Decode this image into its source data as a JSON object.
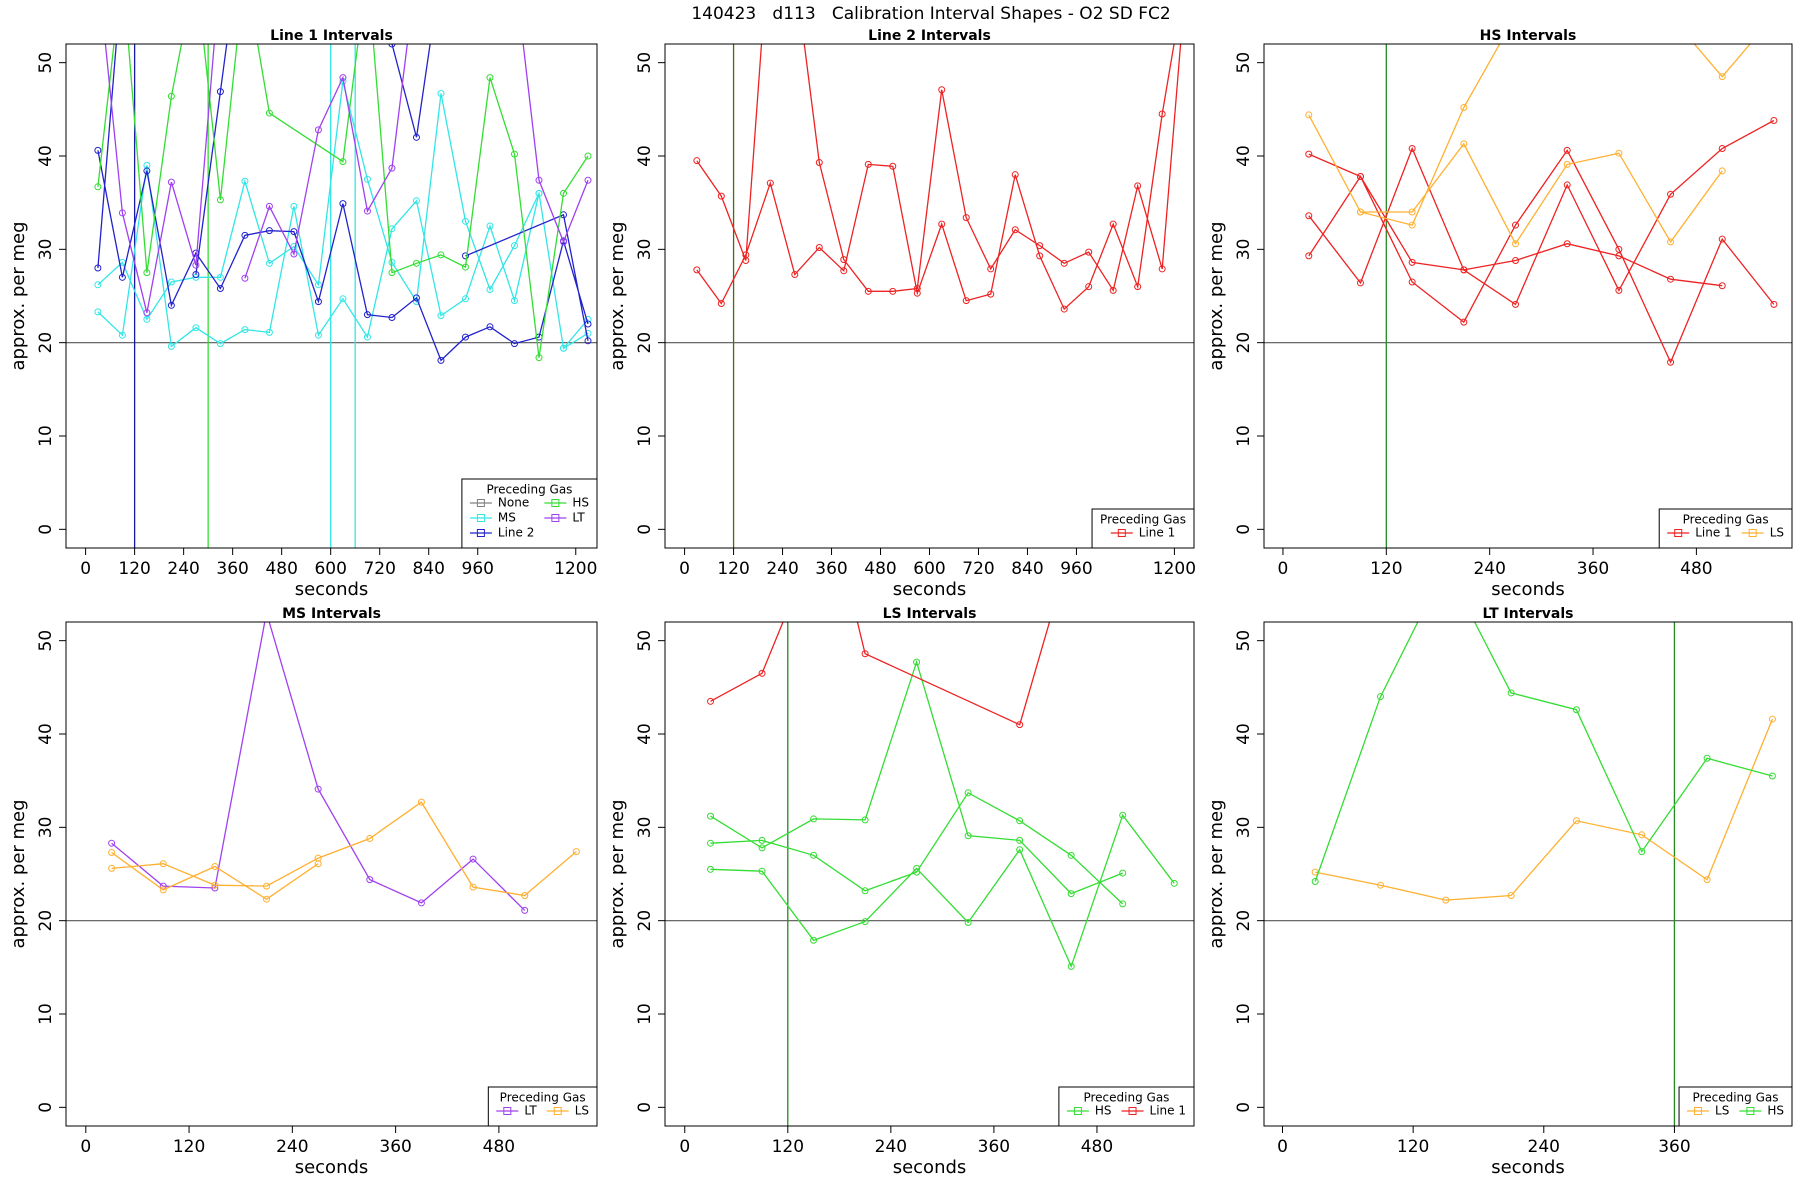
{
  "title": "140423   d113   Calibration Interval Shapes - O2 SD FC2",
  "chart_data": [
    {
      "type": "line",
      "title": "Line 1 Intervals",
      "xlabel": "seconds",
      "ylabel": "approx. per meg",
      "xlim": [
        -48,
        1252
      ],
      "ylim": [
        -2,
        52
      ],
      "xticks": [
        0,
        120,
        240,
        360,
        480,
        600,
        720,
        840,
        960,
        1200
      ],
      "yticks": [
        0,
        10,
        20,
        30,
        40,
        50
      ],
      "hline": 20,
      "vlines": [
        {
          "x": 120,
          "color": "#1a1aa8"
        },
        {
          "x": 300,
          "color": "#33dd33"
        },
        {
          "x": 600,
          "color": "#33e6e6"
        },
        {
          "x": 660,
          "color": "#33e6e6"
        }
      ],
      "legend_title": "Preceding Gas",
      "legend": "bottomright",
      "legend_columns": 2,
      "series": [
        {
          "name": "None",
          "color": "#808080",
          "x": [],
          "values": []
        },
        {
          "name": "MS",
          "color": "#33e6e6",
          "x": [
            30,
            90,
            150,
            210,
            270,
            330,
            390,
            450,
            510,
            570,
            630,
            690,
            750,
            810,
            870,
            930,
            990,
            1050,
            1110,
            1170,
            1230,
            null,
            30,
            90,
            150,
            210,
            270,
            330,
            390,
            450,
            510,
            570,
            630,
            690,
            750,
            810,
            870,
            930,
            990,
            1050,
            1110,
            1170,
            1230
          ],
          "values": [
            23.3,
            20.8,
            39.0,
            19.6,
            21.6,
            19.9,
            21.4,
            21.1,
            34.6,
            20.8,
            24.7,
            20.6,
            32.2,
            35.2,
            22.9,
            24.7,
            32.5,
            24.5,
            36.0,
            19.4,
            22.5,
            null,
            26.2,
            28.6,
            22.5,
            26.5,
            27.0,
            27.0,
            37.3,
            28.5,
            30.3,
            26.2,
            48.0,
            37.5,
            28.6,
            24.4,
            46.7,
            33.0,
            25.7,
            30.4,
            36.0,
            19.4,
            21.0
          ]
        },
        {
          "name": "Line 2",
          "color": "#2222cc",
          "x": [
            30,
            90,
            150,
            210,
            270,
            330,
            390,
            450,
            510,
            570,
            630,
            690,
            750,
            810,
            870,
            930,
            990,
            1050,
            1110,
            1170,
            1230,
            null,
            30,
            90,
            null,
            270,
            330,
            370,
            null,
            750,
            810,
            870,
            null,
            930,
            1170,
            1230
          ],
          "values": [
            40.6,
            27.0,
            38.4,
            24.0,
            29.6,
            25.8,
            31.5,
            32.0,
            31.9,
            24.4,
            34.9,
            23.0,
            22.7,
            24.8,
            18.1,
            20.6,
            21.7,
            19.9,
            20.6,
            30.9,
            22.0,
            null,
            28.0,
            60,
            null,
            27.3,
            46.9,
            60,
            null,
            52,
            42.0,
            60,
            null,
            29.3,
            33.7,
            20.2
          ]
        },
        {
          "name": "HS",
          "color": "#33dd33",
          "x": [
            30,
            90,
            150,
            210,
            270,
            330,
            390,
            450,
            630,
            690,
            750,
            810,
            870,
            930,
            990,
            1050,
            1110,
            1170,
            1230
          ],
          "values": [
            36.7,
            60,
            27.5,
            46.4,
            60,
            35.3,
            60,
            44.6,
            39.4,
            60,
            27.5,
            28.5,
            29.4,
            28.1,
            48.4,
            40.2,
            18.4,
            36.0,
            40.0
          ]
        },
        {
          "name": "LT",
          "color": "#a040f0",
          "x": [
            30,
            90,
            150,
            210,
            270,
            330,
            null,
            390,
            450,
            510,
            570,
            630,
            690,
            750,
            810,
            null,
            1050,
            1110,
            1170,
            1230
          ],
          "values": [
            60,
            33.9,
            23.2,
            37.2,
            28.3,
            60,
            null,
            26.9,
            34.6,
            29.5,
            42.8,
            48.4,
            34.1,
            38.7,
            60,
            null,
            60,
            37.4,
            30.8,
            37.4
          ]
        }
      ]
    },
    {
      "type": "line",
      "title": "Line 2 Intervals",
      "xlabel": "seconds",
      "ylabel": "approx. per meg",
      "xlim": [
        -48,
        1248
      ],
      "ylim": [
        -2,
        52
      ],
      "xticks": [
        0,
        120,
        240,
        360,
        480,
        600,
        720,
        840,
        960,
        1200
      ],
      "yticks": [
        0,
        10,
        20,
        30,
        40,
        50
      ],
      "hline": 20,
      "vlines": [
        {
          "x": 120,
          "color": "#4a6a10"
        }
      ],
      "legend_title": "Preceding Gas",
      "legend": "bottomright",
      "legend_columns": 1,
      "series": [
        {
          "name": "Line 1",
          "color": "#ee2222",
          "x": [
            30,
            90,
            150,
            210,
            270,
            330,
            390,
            450,
            510,
            570,
            630,
            690,
            750,
            810,
            870,
            930,
            990,
            1050,
            1110,
            1170,
            1230,
            null,
            30,
            90,
            150,
            210,
            270,
            330,
            390,
            450,
            510,
            570,
            630,
            690,
            750,
            810,
            870,
            930,
            990,
            1050,
            1110,
            1170,
            1230
          ],
          "values": [
            27.8,
            24.2,
            29.4,
            37.1,
            27.3,
            30.2,
            27.7,
            39.1,
            38.9,
            25.3,
            32.7,
            24.5,
            25.2,
            38.0,
            29.3,
            23.6,
            26.0,
            32.7,
            26.0,
            44.5,
            60,
            null,
            39.5,
            35.7,
            28.8,
            65,
            60,
            39.3,
            28.9,
            25.5,
            25.5,
            25.8,
            47.1,
            33.4,
            27.9,
            32.1,
            30.4,
            28.5,
            29.7,
            25.6,
            36.8,
            27.9,
            60
          ]
        }
      ]
    },
    {
      "type": "line",
      "title": "HS Intervals",
      "xlabel": "seconds",
      "ylabel": "approx. per meg",
      "xlim": [
        -22,
        591
      ],
      "ylim": [
        -2,
        52
      ],
      "xticks": [
        0,
        120,
        240,
        360,
        480
      ],
      "yticks": [
        0,
        10,
        20,
        30,
        40,
        50
      ],
      "hline": 20,
      "vlines": [
        {
          "x": 120,
          "color": "#228b22"
        }
      ],
      "legend_title": "Preceding Gas",
      "legend": "bottomright",
      "legend_columns": 2,
      "series": [
        {
          "name": "Line 1",
          "color": "#ee2222",
          "x": [
            30,
            90,
            150,
            210,
            270,
            330,
            390,
            450,
            510,
            null,
            30,
            90,
            150,
            210,
            270,
            330,
            390,
            450,
            510,
            570,
            null,
            30,
            90,
            150,
            210,
            270,
            330,
            390,
            450,
            510,
            570
          ],
          "values": [
            40.2,
            37.8,
            28.6,
            27.8,
            28.8,
            30.6,
            29.3,
            26.8,
            26.1,
            null,
            33.6,
            26.4,
            40.8,
            27.8,
            24.1,
            36.9,
            25.6,
            35.9,
            40.8,
            43.8,
            null,
            29.3,
            37.8,
            26.5,
            22.2,
            32.6,
            40.6,
            30.0,
            17.9,
            31.1,
            24.1
          ]
        },
        {
          "name": "LS",
          "color": "#ffb030",
          "x": [
            30,
            90,
            150,
            210,
            270,
            null,
            90,
            150,
            210,
            270,
            330,
            390,
            450,
            510,
            null,
            450,
            510,
            570
          ],
          "values": [
            44.4,
            34.0,
            32.6,
            45.2,
            55,
            null,
            34.0,
            34.0,
            41.3,
            30.6,
            39.1,
            40.3,
            30.8,
            38.4,
            null,
            55,
            48.5,
            55
          ]
        }
      ]
    },
    {
      "type": "line",
      "title": "MS Intervals",
      "xlabel": "seconds",
      "ylabel": "approx. per meg",
      "xlim": [
        -23,
        594
      ],
      "ylim": [
        -2,
        52
      ],
      "xticks": [
        0,
        120,
        240,
        360,
        480
      ],
      "yticks": [
        0,
        10,
        20,
        30,
        40,
        50
      ],
      "hline": 20,
      "vlines": [],
      "legend_title": "Preceding Gas",
      "legend": "bottomright",
      "legend_columns": 2,
      "series": [
        {
          "name": "LT",
          "color": "#a040f0",
          "x": [
            30,
            90,
            150,
            210,
            270,
            330,
            390,
            450,
            510
          ],
          "values": [
            28.3,
            23.7,
            23.5,
            53,
            34.1,
            24.4,
            21.9,
            26.6,
            21.1
          ]
        },
        {
          "name": "LS",
          "color": "#ffb030",
          "x": [
            30,
            90,
            150,
            210,
            270,
            null,
            30,
            90,
            150,
            210,
            270,
            330,
            390,
            450,
            510,
            570
          ],
          "values": [
            27.3,
            23.3,
            25.8,
            22.3,
            26.1,
            null,
            25.6,
            26.1,
            23.8,
            23.7,
            26.7,
            28.8,
            32.7,
            23.6,
            22.7,
            27.4
          ]
        }
      ]
    },
    {
      "type": "line",
      "title": "LS Intervals",
      "xlabel": "seconds",
      "ylabel": "approx. per meg",
      "xlim": [
        -23,
        593
      ],
      "ylim": [
        -2,
        52
      ],
      "xticks": [
        0,
        120,
        240,
        360,
        480
      ],
      "yticks": [
        0,
        10,
        20,
        30,
        40,
        50
      ],
      "hline": 20,
      "vlines": [
        {
          "x": 120,
          "color": "#228b22"
        }
      ],
      "legend_title": "Preceding Gas",
      "legend": "bottomright",
      "legend_columns": 2,
      "series": [
        {
          "name": "HS",
          "color": "#33dd33",
          "x": [
            30,
            90,
            150,
            210,
            270,
            330,
            390,
            450,
            510,
            null,
            30,
            90,
            150,
            210,
            270,
            330,
            390,
            450,
            510,
            null,
            30,
            90,
            150,
            210,
            270,
            330,
            390,
            450,
            510,
            570
          ],
          "values": [
            31.2,
            27.8,
            30.9,
            30.8,
            47.7,
            29.1,
            28.6,
            22.9,
            25.1,
            null,
            28.3,
            28.6,
            27.0,
            23.2,
            25.2,
            33.7,
            30.7,
            27.0,
            21.8,
            null,
            25.5,
            25.3,
            17.9,
            19.9,
            25.6,
            19.8,
            27.6,
            15.1,
            31.3,
            24.0
          ]
        },
        {
          "name": "Line 1",
          "color": "#ee2222",
          "x": [
            30,
            90,
            150,
            null,
            180,
            210,
            390,
            450
          ],
          "values": [
            43.5,
            46.5,
            60,
            null,
            60,
            48.6,
            41.0,
            60
          ]
        }
      ]
    },
    {
      "type": "line",
      "title": "LT Intervals",
      "xlabel": "seconds",
      "ylabel": "approx. per meg",
      "xlim": [
        -17,
        468
      ],
      "ylim": [
        -2,
        52
      ],
      "xticks": [
        0,
        120,
        240,
        360
      ],
      "yticks": [
        0,
        10,
        20,
        30,
        40,
        50
      ],
      "hline": 20,
      "vlines": [
        {
          "x": 360,
          "color": "#228b22"
        }
      ],
      "legend_title": "Preceding Gas",
      "legend": "bottomright",
      "legend_columns": 2,
      "series": [
        {
          "name": "LS",
          "color": "#ffb030",
          "x": [
            30,
            90,
            150,
            210,
            270,
            330,
            390,
            450
          ],
          "values": [
            25.2,
            23.8,
            22.2,
            22.7,
            30.7,
            29.2,
            24.4,
            41.6
          ]
        },
        {
          "name": "HS",
          "color": "#33dd33",
          "x": [
            30,
            90,
            150,
            210,
            270,
            330,
            390,
            450
          ],
          "values": [
            24.2,
            44.0,
            58,
            44.4,
            42.6,
            27.4,
            37.4,
            35.5
          ]
        }
      ]
    }
  ]
}
